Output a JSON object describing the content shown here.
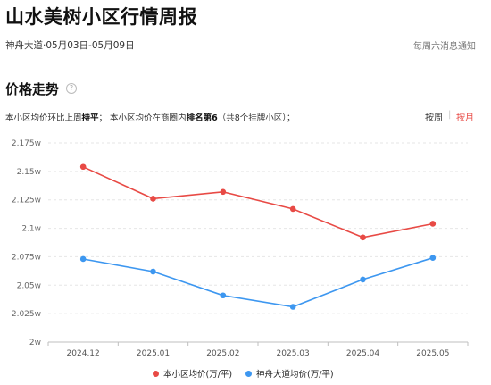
{
  "header": {
    "title": "山水美树小区行情周报",
    "subtitle": "神舟大道·05月03日-05月09日",
    "notice": "每周六消息通知"
  },
  "section": {
    "title": "价格走势",
    "help_glyph": "?",
    "summary_pre": "本小区均价环比上周",
    "summary_trend": "持平",
    "summary_mid": "； 本小区均价在商圈内",
    "summary_rank": "排名第6",
    "summary_post": "（共8个挂牌小区）；"
  },
  "toggles": {
    "week": "按周",
    "sep": "|",
    "month": "按月",
    "active": "month"
  },
  "colors": {
    "series_a": "#e84a45",
    "series_b": "#3d97f0"
  },
  "chart_data": {
    "type": "line",
    "categories": [
      "2024.12",
      "2025.01",
      "2025.02",
      "2025.03",
      "2025.04",
      "2025.05"
    ],
    "series": [
      {
        "name": "本小区均价(万/平)",
        "values": [
          2.154,
          2.126,
          2.132,
          2.117,
          2.092,
          2.104
        ],
        "color": "#e84a45"
      },
      {
        "name": "神舟大道均价(万/平)",
        "values": [
          2.073,
          2.062,
          2.041,
          2.031,
          2.055,
          2.074
        ],
        "color": "#3d97f0"
      }
    ],
    "ylim": [
      2.0,
      2.175
    ],
    "yticks": [
      "2w",
      "2.025w",
      "2.05w",
      "2.075w",
      "2.1w",
      "2.125w",
      "2.15w",
      "2.175w"
    ],
    "ytick_values": [
      2.0,
      2.025,
      2.05,
      2.075,
      2.1,
      2.125,
      2.15,
      2.175
    ],
    "grid": true,
    "legend_placement": "bottom"
  }
}
